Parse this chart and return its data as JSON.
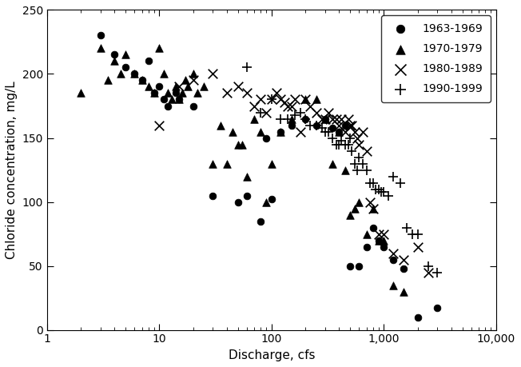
{
  "title": "",
  "xlabel": "Discharge, cfs",
  "ylabel": "Chloride concentration, mg/L",
  "xlim": [
    1,
    10000
  ],
  "ylim": [
    0,
    250
  ],
  "yticks": [
    0,
    50,
    100,
    150,
    200,
    250
  ],
  "legend_labels": [
    "1963-1969",
    "1970-1979",
    "1980-1989",
    "1990-1999"
  ],
  "markers": [
    "o",
    "^",
    "x",
    "+"
  ],
  "markersize": [
    5,
    6,
    7,
    7
  ],
  "color": "black",
  "series": {
    "1963-1969": {
      "discharge": [
        3,
        4,
        5,
        6,
        7,
        8,
        9,
        10,
        11,
        12,
        14,
        15,
        20,
        30,
        50,
        60,
        80,
        90,
        100,
        120,
        150,
        200,
        250,
        300,
        350,
        400,
        450,
        500,
        600,
        700,
        800,
        900,
        1000,
        1200,
        1500,
        2000,
        3000
      ],
      "chloride": [
        230,
        215,
        205,
        200,
        195,
        210,
        185,
        190,
        180,
        175,
        185,
        180,
        175,
        105,
        100,
        105,
        85,
        150,
        102,
        155,
        160,
        165,
        160,
        165,
        158,
        155,
        160,
        50,
        50,
        65,
        80,
        70,
        65,
        55,
        48,
        10,
        17
      ]
    },
    "1970-1979": {
      "discharge": [
        2,
        3,
        3.5,
        4,
        4.5,
        5,
        6,
        7,
        8,
        9,
        10,
        11,
        12,
        13,
        14,
        15,
        16,
        17,
        18,
        20,
        22,
        25,
        30,
        35,
        40,
        45,
        50,
        55,
        60,
        70,
        80,
        90,
        100,
        120,
        150,
        200,
        250,
        300,
        350,
        400,
        450,
        500,
        550,
        600,
        700,
        800,
        900,
        1000,
        1200,
        1500
      ],
      "chloride": [
        185,
        220,
        195,
        210,
        200,
        215,
        200,
        195,
        190,
        185,
        220,
        200,
        185,
        180,
        190,
        180,
        185,
        195,
        190,
        200,
        185,
        190,
        130,
        160,
        130,
        155,
        145,
        145,
        120,
        165,
        155,
        100,
        130,
        155,
        165,
        180,
        180,
        165,
        130,
        155,
        125,
        90,
        95,
        100,
        75,
        95,
        70,
        70,
        35,
        30
      ]
    },
    "1980-1989": {
      "discharge": [
        10,
        15,
        20,
        30,
        40,
        50,
        60,
        70,
        80,
        90,
        100,
        110,
        120,
        130,
        140,
        150,
        160,
        180,
        200,
        220,
        250,
        280,
        300,
        320,
        350,
        380,
        400,
        420,
        450,
        480,
        500,
        520,
        550,
        580,
        600,
        650,
        700,
        750,
        800,
        900,
        1000,
        1200,
        1500,
        2000,
        2500
      ],
      "chloride": [
        160,
        190,
        195,
        200,
        185,
        190,
        185,
        175,
        180,
        170,
        180,
        185,
        180,
        178,
        175,
        175,
        180,
        155,
        180,
        175,
        170,
        165,
        165,
        170,
        165,
        165,
        160,
        165,
        155,
        165,
        160,
        160,
        155,
        150,
        145,
        155,
        140,
        100,
        95,
        75,
        75,
        60,
        55,
        65,
        45
      ]
    },
    "1990-1999": {
      "discharge": [
        60,
        80,
        100,
        120,
        140,
        160,
        180,
        200,
        220,
        250,
        280,
        300,
        320,
        350,
        380,
        400,
        420,
        450,
        480,
        500,
        520,
        550,
        580,
        600,
        650,
        700,
        750,
        800,
        850,
        900,
        950,
        1000,
        1100,
        1200,
        1400,
        1600,
        1800,
        2000,
        2500,
        3000
      ],
      "chloride": [
        205,
        170,
        180,
        165,
        165,
        168,
        170,
        165,
        160,
        160,
        158,
        155,
        155,
        150,
        145,
        145,
        148,
        145,
        145,
        150,
        140,
        130,
        125,
        135,
        130,
        125,
        115,
        115,
        110,
        110,
        108,
        108,
        105,
        120,
        115,
        80,
        75,
        75,
        50,
        45
      ]
    }
  }
}
